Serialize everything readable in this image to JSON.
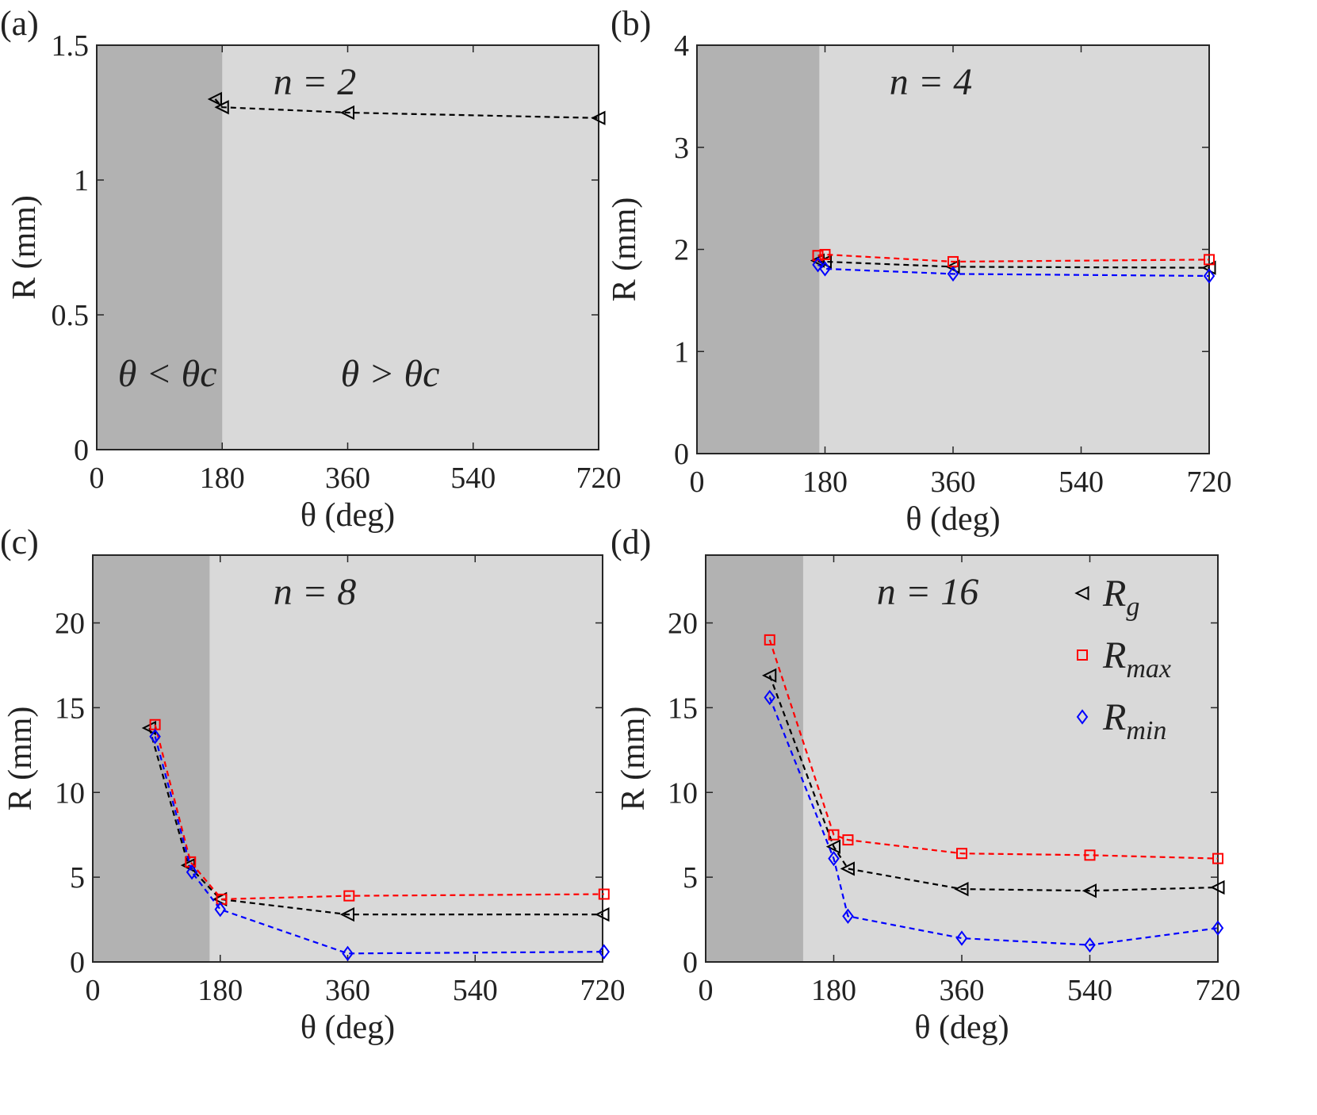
{
  "colors": {
    "page_bg": "#ffffff",
    "region_below": "#b2b2b2",
    "region_above": "#d9d9d9",
    "axis": "#262626",
    "Rg": "#000000",
    "Rmax": "#ff0000",
    "Rmin": "#0000ff"
  },
  "legend": {
    "entries": [
      {
        "key": "Rg",
        "base": "R",
        "sub": "g",
        "marker": "triangle-left",
        "color": "#000000"
      },
      {
        "key": "Rmax",
        "base": "R",
        "sub": "max",
        "marker": "square",
        "color": "#ff0000"
      },
      {
        "key": "Rmin",
        "base": "R",
        "sub": "min",
        "marker": "diamond",
        "color": "#0000ff"
      }
    ],
    "placement": "top-right of panel (d)"
  },
  "chart_data": [
    {
      "panel": "(a)",
      "type": "line",
      "annotation": "n = 2",
      "region_labels": {
        "left": "θ < θc",
        "right": "θ > θc"
      },
      "xlabel": "θ (deg)",
      "ylabel": "R (mm)",
      "xlim": [
        0,
        720
      ],
      "ylim": [
        0,
        1.5
      ],
      "xticks": [
        "0",
        "180",
        "360",
        "540",
        "720"
      ],
      "yticks": [
        "0",
        "0.5",
        "1",
        "1.5"
      ],
      "shaded_until": 180,
      "series": [
        {
          "name": "Rg",
          "x": [
            170,
            180,
            360,
            720
          ],
          "y": [
            1.3,
            1.27,
            1.25,
            1.23
          ]
        }
      ]
    },
    {
      "panel": "(b)",
      "type": "line",
      "annotation": "n = 4",
      "xlabel": "θ (deg)",
      "ylabel": "R (mm)",
      "xlim": [
        0,
        720
      ],
      "ylim": [
        0,
        4
      ],
      "xticks": [
        "0",
        "180",
        "360",
        "540",
        "720"
      ],
      "yticks": [
        "0",
        "1",
        "2",
        "3",
        "4"
      ],
      "shaded_until": 172,
      "series": [
        {
          "name": "Rg",
          "x": [
            170,
            180,
            360,
            720
          ],
          "y": [
            1.89,
            1.88,
            1.83,
            1.82
          ]
        },
        {
          "name": "Rmax",
          "x": [
            170,
            180,
            360,
            720
          ],
          "y": [
            1.94,
            1.95,
            1.88,
            1.9
          ]
        },
        {
          "name": "Rmin",
          "x": [
            170,
            180,
            360,
            720
          ],
          "y": [
            1.85,
            1.81,
            1.76,
            1.74
          ]
        }
      ]
    },
    {
      "panel": "(c)",
      "type": "line",
      "annotation": "n = 8",
      "xlabel": "θ (deg)",
      "ylabel": "R (mm)",
      "xlim": [
        0,
        720
      ],
      "ylim": [
        0,
        24
      ],
      "xticks": [
        "0",
        "180",
        "360",
        "540",
        "720"
      ],
      "yticks": [
        "0",
        "5",
        "10",
        "15",
        "20"
      ],
      "shaded_until": 165,
      "series": [
        {
          "name": "Rg",
          "x": [
            80,
            135,
            180,
            360,
            720
          ],
          "y": [
            13.8,
            5.7,
            3.7,
            2.8,
            2.8
          ]
        },
        {
          "name": "Rmax",
          "x": [
            88,
            138,
            182,
            362,
            722
          ],
          "y": [
            14.0,
            5.9,
            3.7,
            3.9,
            4.0
          ]
        },
        {
          "name": "Rmin",
          "x": [
            88,
            140,
            180,
            360,
            722
          ],
          "y": [
            13.3,
            5.3,
            3.1,
            0.5,
            0.6
          ]
        }
      ]
    },
    {
      "panel": "(d)",
      "type": "line",
      "annotation": "n = 16",
      "xlabel": "θ (deg)",
      "ylabel": "R (mm)",
      "xlim": [
        0,
        720
      ],
      "ylim": [
        0,
        24
      ],
      "xticks": [
        "0",
        "180",
        "360",
        "540",
        "720"
      ],
      "yticks": [
        "0",
        "5",
        "10",
        "15",
        "20"
      ],
      "shaded_until": 137,
      "series": [
        {
          "name": "Rg",
          "x": [
            90,
            180,
            200,
            360,
            540,
            720
          ],
          "y": [
            16.9,
            6.8,
            5.5,
            4.3,
            4.2,
            4.4
          ]
        },
        {
          "name": "Rmax",
          "x": [
            90,
            180,
            200,
            360,
            540,
            720
          ],
          "y": [
            19.0,
            7.5,
            7.2,
            6.4,
            6.3,
            6.1
          ]
        },
        {
          "name": "Rmin",
          "x": [
            90,
            180,
            200,
            360,
            540,
            720
          ],
          "y": [
            15.6,
            6.1,
            2.7,
            1.4,
            1.0,
            2.0
          ]
        }
      ]
    }
  ]
}
